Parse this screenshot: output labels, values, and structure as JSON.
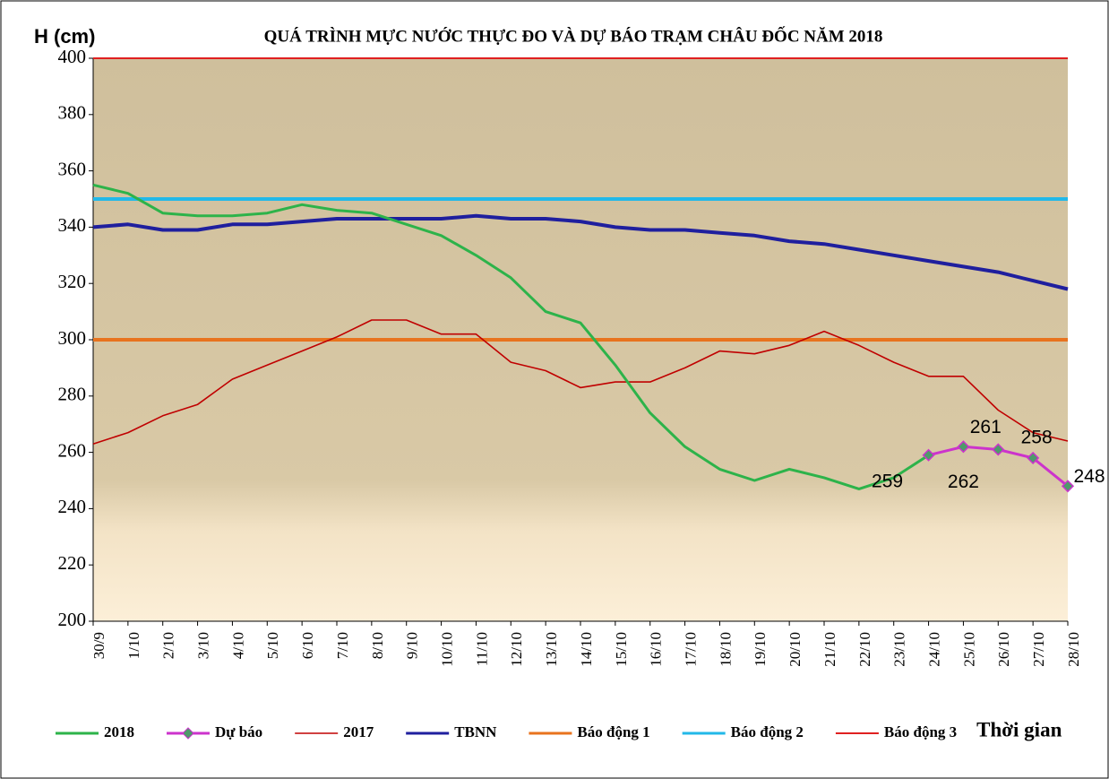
{
  "chart_data": {
    "type": "line",
    "title": "QUÁ TRÌNH MỰC NƯỚC THỰC ĐO VÀ DỰ BÁO TRẠM CHÂU ĐỐC NĂM 2018",
    "y_label": "H (cm)",
    "x_label": "Thời gian",
    "categories": [
      "30/9",
      "1/10",
      "2/10",
      "3/10",
      "4/10",
      "5/10",
      "6/10",
      "7/10",
      "8/10",
      "9/10",
      "10/10",
      "11/10",
      "12/10",
      "13/10",
      "14/10",
      "15/10",
      "16/10",
      "17/10",
      "18/10",
      "19/10",
      "20/10",
      "21/10",
      "22/10",
      "23/10",
      "24/10",
      "25/10",
      "26/10",
      "27/10",
      "28/10"
    ],
    "ylim": [
      200,
      400
    ],
    "yticks": [
      200,
      220,
      240,
      260,
      280,
      300,
      320,
      340,
      360,
      380,
      400
    ],
    "legend": "bottom",
    "series": [
      {
        "name": "2018",
        "color": "#2db34a",
        "values": [
          355,
          352,
          345,
          344,
          344,
          345,
          348,
          346,
          345,
          341,
          337,
          330,
          322,
          310,
          306,
          291,
          274,
          262,
          254,
          250,
          254,
          251,
          247,
          251,
          259,
          null,
          null,
          null,
          null
        ]
      },
      {
        "name": "Dự báo",
        "color": "#cc33cc",
        "marker_color": "#4e9a6a",
        "values": [
          null,
          null,
          null,
          null,
          null,
          null,
          null,
          null,
          null,
          null,
          null,
          null,
          null,
          null,
          null,
          null,
          null,
          null,
          null,
          null,
          null,
          null,
          null,
          null,
          259,
          262,
          261,
          258,
          248
        ]
      },
      {
        "name": "2017",
        "color": "#c00000",
        "values": [
          263,
          267,
          273,
          277,
          286,
          291,
          296,
          301,
          307,
          307,
          302,
          302,
          292,
          289,
          283,
          285,
          285,
          290,
          296,
          295,
          298,
          303,
          298,
          292,
          287,
          287,
          275,
          267,
          264
        ]
      },
      {
        "name": "TBNN",
        "color": "#1f1f9e",
        "values": [
          340,
          341,
          339,
          339,
          341,
          341,
          342,
          343,
          343,
          343,
          343,
          344,
          343,
          343,
          342,
          340,
          339,
          339,
          338,
          337,
          335,
          334,
          332,
          330,
          328,
          326,
          324,
          321,
          318
        ]
      },
      {
        "name": "Báo động 1",
        "color": "#e8731e",
        "values": [
          300,
          300,
          300,
          300,
          300,
          300,
          300,
          300,
          300,
          300,
          300,
          300,
          300,
          300,
          300,
          300,
          300,
          300,
          300,
          300,
          300,
          300,
          300,
          300,
          300,
          300,
          300,
          300,
          300
        ]
      },
      {
        "name": "Báo động 2",
        "color": "#22b8e8",
        "values": [
          350,
          350,
          350,
          350,
          350,
          350,
          350,
          350,
          350,
          350,
          350,
          350,
          350,
          350,
          350,
          350,
          350,
          350,
          350,
          350,
          350,
          350,
          350,
          350,
          350,
          350,
          350,
          350,
          350
        ]
      },
      {
        "name": "Báo động 3",
        "color": "#e02020",
        "values": [
          400,
          400,
          400,
          400,
          400,
          400,
          400,
          400,
          400,
          400,
          400,
          400,
          400,
          400,
          400,
          400,
          400,
          400,
          400,
          400,
          400,
          400,
          400,
          400,
          400,
          400,
          400,
          400,
          400
        ]
      }
    ]
  }
}
